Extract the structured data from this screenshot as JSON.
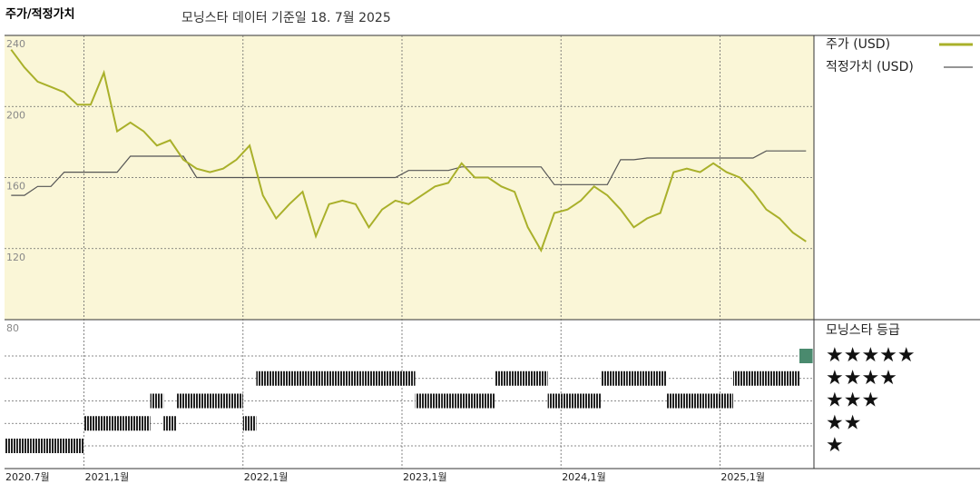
{
  "chart_data": {
    "type": "line",
    "title": "주가/적정가치",
    "subtitle": "모닝스타 데이터 기준일 18. 7월 2025",
    "x": [
      "2020-07",
      "2020-08",
      "2020-09",
      "2020-10",
      "2020-11",
      "2020-12",
      "2021-01",
      "2021-02",
      "2021-03",
      "2021-04",
      "2021-05",
      "2021-06",
      "2021-07",
      "2021-08",
      "2021-09",
      "2021-10",
      "2021-11",
      "2021-12",
      "2022-01",
      "2022-02",
      "2022-03",
      "2022-04",
      "2022-05",
      "2022-06",
      "2022-07",
      "2022-08",
      "2022-09",
      "2022-10",
      "2022-11",
      "2022-12",
      "2023-01",
      "2023-02",
      "2023-03",
      "2023-04",
      "2023-05",
      "2023-06",
      "2023-07",
      "2023-08",
      "2023-09",
      "2023-10",
      "2023-11",
      "2023-12",
      "2024-01",
      "2024-02",
      "2024-03",
      "2024-04",
      "2024-05",
      "2024-06",
      "2024-07",
      "2024-08",
      "2024-09",
      "2024-10",
      "2024-11",
      "2024-12",
      "2025-01",
      "2025-02",
      "2025-03",
      "2025-04",
      "2025-05",
      "2025-06",
      "2025-07"
    ],
    "series": [
      {
        "name": "주가 (USD)",
        "color": "#a9b02a",
        "values": [
          232,
          222,
          214,
          211,
          208,
          201,
          201,
          219,
          186,
          191,
          186,
          178,
          181,
          170,
          165,
          163,
          165,
          170,
          178,
          150,
          137,
          145,
          152,
          127,
          145,
          147,
          145,
          132,
          142,
          147,
          145,
          150,
          155,
          157,
          168,
          160,
          160,
          155,
          152,
          132,
          119,
          140,
          142,
          147,
          155,
          150,
          142,
          132,
          137,
          140,
          163,
          165,
          163,
          168,
          163,
          160,
          152,
          142,
          137,
          129,
          124
        ]
      },
      {
        "name": "적정가치 (USD)",
        "color": "#555555",
        "values": [
          150,
          150,
          155,
          155,
          163,
          163,
          163,
          163,
          163,
          172,
          172,
          172,
          172,
          172,
          160,
          160,
          160,
          160,
          160,
          160,
          160,
          160,
          160,
          160,
          160,
          160,
          160,
          160,
          160,
          160,
          164,
          164,
          164,
          164,
          166,
          166,
          166,
          166,
          166,
          166,
          166,
          156,
          156,
          156,
          156,
          156,
          170,
          170,
          171,
          171,
          171,
          171,
          171,
          171,
          171,
          171,
          171,
          175,
          175,
          175,
          175
        ]
      }
    ],
    "ylim": [
      80,
      240
    ],
    "yticks": [
      80,
      120,
      160,
      200,
      240
    ],
    "xticks": [
      {
        "value": "2020-07",
        "label": "2020.7월"
      },
      {
        "value": "2021-01",
        "label": "2021,1월"
      },
      {
        "value": "2022-01",
        "label": "2022,1월"
      },
      {
        "value": "2023-01",
        "label": "2023,1월"
      },
      {
        "value": "2024-01",
        "label": "2024,1월"
      },
      {
        "value": "2025-01",
        "label": "2025,1월"
      }
    ],
    "grid": true,
    "background": "#faf6d7",
    "rating": {
      "title": "모닝스타 등급",
      "levels": [
        "★",
        "★★",
        "★★★",
        "★★★★",
        "★★★★★"
      ],
      "color": "#222222",
      "top_color": "#4a8a6e",
      "values": [
        1,
        1,
        1,
        1,
        1,
        1,
        2,
        2,
        2,
        2,
        2,
        3,
        2,
        3,
        3,
        3,
        3,
        3,
        2,
        4,
        4,
        4,
        4,
        4,
        4,
        4,
        4,
        4,
        4,
        4,
        4,
        3,
        3,
        3,
        3,
        3,
        3,
        4,
        4,
        4,
        4,
        3,
        3,
        3,
        3,
        4,
        4,
        4,
        4,
        4,
        3,
        3,
        3,
        3,
        3,
        4,
        4,
        4,
        4,
        4,
        5
      ]
    }
  }
}
